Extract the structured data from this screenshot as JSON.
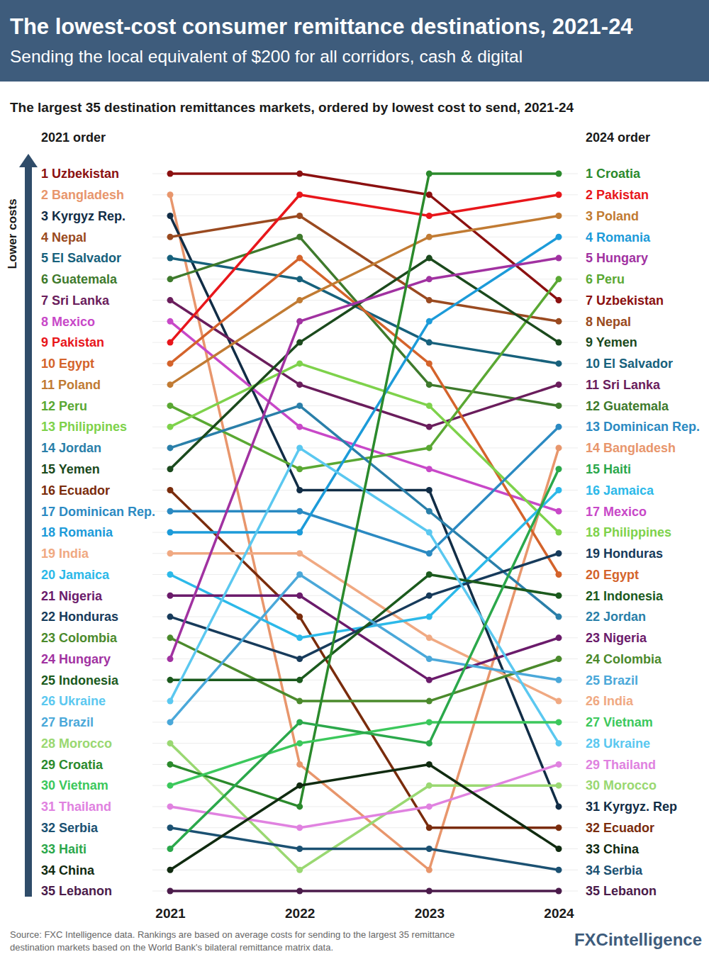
{
  "chart_data": {
    "type": "line",
    "title": "The lowest-cost consumer remittance destinations, 2021-24",
    "subtitle": "Sending the local equivalent of $200 for all corridors, cash & digital",
    "chart_heading": "The largest 35 destination remittances markets, ordered by lowest cost to send, 2021-24",
    "left_heading": "2021 order",
    "right_heading": "2024 order",
    "y_label": "Lower costs",
    "categories": [
      "2021",
      "2022",
      "2023",
      "2024"
    ],
    "ylim": [
      1,
      35
    ],
    "yticks": [
      1,
      2,
      3,
      4,
      5,
      6,
      7,
      8,
      9,
      10,
      11,
      12,
      13,
      14,
      15,
      16,
      17,
      18,
      19,
      20,
      21,
      22,
      23,
      24,
      25,
      26,
      27,
      28,
      29,
      30,
      31,
      32,
      33,
      34,
      35
    ],
    "grid": true,
    "tick_labels": "x",
    "marker": "circle",
    "series": [
      {
        "name": "Uzbekistan",
        "end_name": "Uzbekistan",
        "color": "#8b1010",
        "values": [
          1,
          1,
          2,
          7
        ]
      },
      {
        "name": "Bangladesh",
        "end_name": "Bangladesh",
        "color": "#e8966c",
        "values": [
          2,
          29,
          34,
          14
        ]
      },
      {
        "name": "Kyrgyz Rep.",
        "end_name": "Kyrgyz. Rep",
        "color": "#112d46",
        "values": [
          3,
          16,
          16,
          31
        ]
      },
      {
        "name": "Nepal",
        "end_name": "Nepal",
        "color": "#9a4a20",
        "values": [
          4,
          3,
          7,
          8
        ]
      },
      {
        "name": "El Salvador",
        "end_name": "El Salvador",
        "color": "#17617c",
        "values": [
          5,
          6,
          9,
          10
        ]
      },
      {
        "name": "Guatemala",
        "end_name": "Guatemala",
        "color": "#3e7a2c",
        "values": [
          6,
          4,
          11,
          12
        ]
      },
      {
        "name": "Sri Lanka",
        "end_name": "Sri Lanka",
        "color": "#6a1d5c",
        "values": [
          7,
          11,
          13,
          11
        ]
      },
      {
        "name": "Mexico",
        "end_name": "Mexico",
        "color": "#c848c8",
        "values": [
          8,
          13,
          15,
          17
        ]
      },
      {
        "name": "Pakistan",
        "end_name": "Pakistan",
        "color": "#e8161b",
        "values": [
          9,
          2,
          3,
          2
        ]
      },
      {
        "name": "Egypt",
        "end_name": "Egypt",
        "color": "#d4632b",
        "values": [
          10,
          5,
          10,
          20
        ]
      },
      {
        "name": "Poland",
        "end_name": "Poland",
        "color": "#c17b33",
        "values": [
          11,
          7,
          4,
          3
        ]
      },
      {
        "name": "Peru",
        "end_name": "Peru",
        "color": "#5aa833",
        "values": [
          12,
          15,
          14,
          6
        ]
      },
      {
        "name": "Philippines",
        "end_name": "Philippines",
        "color": "#7ed24b",
        "values": [
          13,
          10,
          12,
          18
        ]
      },
      {
        "name": "Jordan",
        "end_name": "Jordan",
        "color": "#2a7fa9",
        "values": [
          14,
          12,
          17,
          22
        ]
      },
      {
        "name": "Yemen",
        "end_name": "Yemen",
        "color": "#1b4a1d",
        "values": [
          15,
          9,
          5,
          9
        ]
      },
      {
        "name": "Ecuador",
        "end_name": "Ecuador",
        "color": "#7a2c0c",
        "values": [
          16,
          22,
          32,
          32
        ]
      },
      {
        "name": "Dominican Rep.",
        "end_name": "Dominican Rep.",
        "color": "#2b8ac2",
        "values": [
          17,
          17,
          19,
          13
        ]
      },
      {
        "name": "Romania",
        "end_name": "Romania",
        "color": "#1c9bd9",
        "values": [
          18,
          18,
          8,
          4
        ]
      },
      {
        "name": "India",
        "end_name": "India",
        "color": "#f0a982",
        "values": [
          19,
          19,
          23,
          26
        ]
      },
      {
        "name": "Jamaica",
        "end_name": "Jamaica",
        "color": "#2cb9e9",
        "values": [
          20,
          23,
          22,
          16
        ]
      },
      {
        "name": "Nigeria",
        "end_name": "Nigeria",
        "color": "#6b1b6b",
        "values": [
          21,
          21,
          25,
          23
        ]
      },
      {
        "name": "Honduras",
        "end_name": "Honduras",
        "color": "#173b5b",
        "values": [
          22,
          24,
          21,
          19
        ]
      },
      {
        "name": "Colombia",
        "end_name": "Colombia",
        "color": "#4b8a2c",
        "values": [
          23,
          26,
          26,
          24
        ]
      },
      {
        "name": "Hungary",
        "end_name": "Hungary",
        "color": "#a132a1",
        "values": [
          24,
          8,
          6,
          5
        ]
      },
      {
        "name": "Indonesia",
        "end_name": "Indonesia",
        "color": "#1b5a1d",
        "values": [
          25,
          25,
          20,
          21
        ]
      },
      {
        "name": "Ukraine",
        "end_name": "Ukraine",
        "color": "#5bc8f0",
        "values": [
          26,
          14,
          18,
          28
        ]
      },
      {
        "name": "Brazil",
        "end_name": "Brazil",
        "color": "#4aa8d9",
        "values": [
          27,
          20,
          24,
          25
        ]
      },
      {
        "name": "Morocco",
        "end_name": "Morocco",
        "color": "#9ad872",
        "values": [
          28,
          34,
          30,
          30
        ]
      },
      {
        "name": "Croatia",
        "end_name": "Croatia",
        "color": "#2b8a2c",
        "values": [
          29,
          31,
          1,
          1
        ]
      },
      {
        "name": "Vietnam",
        "end_name": "Vietnam",
        "color": "#3cc85c",
        "values": [
          30,
          28,
          27,
          27
        ]
      },
      {
        "name": "Thailand",
        "end_name": "Thailand",
        "color": "#e082e0",
        "values": [
          31,
          32,
          31,
          29
        ]
      },
      {
        "name": "Serbia",
        "end_name": "Serbia",
        "color": "#1b5172",
        "values": [
          32,
          33,
          33,
          34
        ]
      },
      {
        "name": "Haiti",
        "end_name": "Haiti",
        "color": "#2ba84b",
        "values": [
          33,
          27,
          28,
          15
        ]
      },
      {
        "name": "China",
        "end_name": "China",
        "color": "#102b10",
        "values": [
          34,
          30,
          29,
          33
        ]
      },
      {
        "name": "Lebanon",
        "end_name": "Lebanon",
        "color": "#4b1b4b",
        "values": [
          35,
          35,
          35,
          35
        ]
      }
    ],
    "source": [
      "Source: FXC Intelligence data. Rankings are based on average costs for sending to the largest 35 remittance",
      "destination markets based on the World Bank's bilateral remittance matrix data."
    ],
    "logo": "FXCintelligence"
  }
}
